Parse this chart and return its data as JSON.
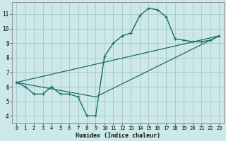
{
  "xlabel": "Humidex (Indice chaleur)",
  "background_color": "#cce8e8",
  "grid_color": "#aacccc",
  "line_color": "#1a6b6b",
  "xlim": [
    -0.5,
    23.5
  ],
  "ylim": [
    3.5,
    11.8
  ],
  "yticks": [
    4,
    5,
    6,
    7,
    8,
    9,
    10,
    11
  ],
  "xticks": [
    0,
    1,
    2,
    3,
    4,
    5,
    6,
    7,
    8,
    9,
    10,
    11,
    12,
    13,
    14,
    15,
    16,
    17,
    18,
    19,
    20,
    21,
    22,
    23
  ],
  "series1_x": [
    0,
    1,
    2,
    3,
    4,
    5,
    6,
    7,
    8,
    9,
    10,
    11,
    12,
    13,
    14,
    15,
    16,
    17,
    18,
    19,
    20,
    21,
    22,
    23
  ],
  "series1_y": [
    6.3,
    6.0,
    5.5,
    5.5,
    6.0,
    5.5,
    5.5,
    5.3,
    4.0,
    4.0,
    8.1,
    9.0,
    9.5,
    9.7,
    10.9,
    11.4,
    11.3,
    10.8,
    9.3,
    9.2,
    9.1,
    9.1,
    9.2,
    9.5
  ],
  "trend1_x": [
    0,
    23
  ],
  "trend1_y": [
    6.3,
    9.5
  ],
  "trend2_x": [
    0,
    9,
    23
  ],
  "trend2_y": [
    6.3,
    5.3,
    9.5
  ]
}
